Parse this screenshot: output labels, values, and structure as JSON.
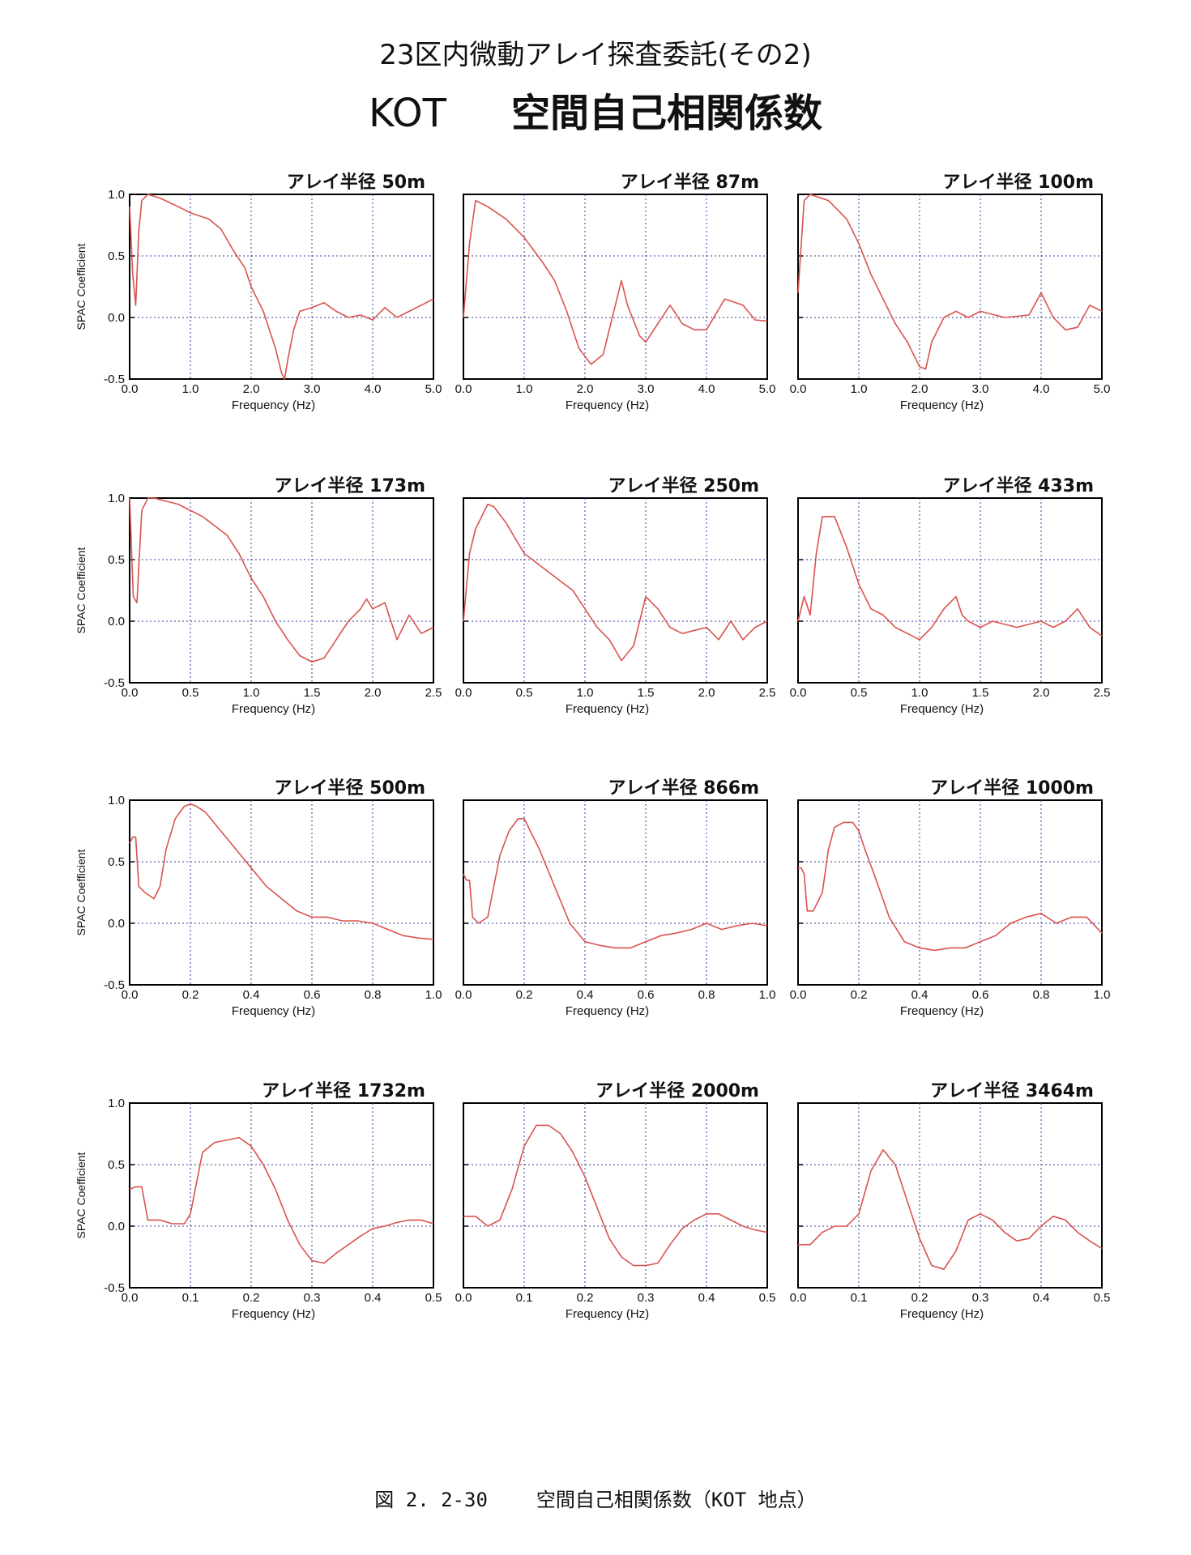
{
  "page": {
    "header_line1": "23区内微動アレイ探査委託(その2)",
    "header_code": "KOT",
    "header_title": "空間自己相関係数",
    "caption_number": "図 2. 2-30",
    "caption_text": "空間自己相関係数（KOT 地点）"
  },
  "colors": {
    "curve": "#d9534f",
    "axis": "#000000",
    "grid": "#3a3aa0"
  },
  "chart_data": [
    {
      "type": "line",
      "title": "アレイ半径 50m",
      "ylabel": "SPAC Coefficient",
      "xlabel": "Frequency (Hz)",
      "xlim": [
        0,
        5.0
      ],
      "ylim": [
        -0.5,
        1.0
      ],
      "grid": true,
      "xticks": [
        "0.0",
        "1.0",
        "2.0",
        "3.0",
        "4.0",
        "5.0"
      ],
      "yticks": [
        "-0.5",
        "0.0",
        "0.5",
        "1.0"
      ],
      "series": [
        {
          "x": [
            0,
            0.05,
            0.1,
            0.15,
            0.2,
            0.3,
            0.5,
            0.8,
            1.0,
            1.3,
            1.5,
            1.7,
            1.9,
            2.0,
            2.1,
            2.2,
            2.3,
            2.4,
            2.5,
            2.55,
            2.6,
            2.7,
            2.8,
            3.0,
            3.2,
            3.4,
            3.6,
            3.8,
            4.0,
            4.2,
            4.4,
            4.6,
            4.8,
            5.0
          ],
          "y": [
            0.9,
            0.35,
            0.1,
            0.7,
            0.95,
            1.0,
            0.97,
            0.9,
            0.85,
            0.8,
            0.72,
            0.55,
            0.4,
            0.25,
            0.15,
            0.05,
            -0.1,
            -0.25,
            -0.45,
            -0.5,
            -0.35,
            -0.1,
            0.05,
            0.08,
            0.12,
            0.05,
            0.0,
            0.02,
            -0.02,
            0.08,
            0.0,
            0.05,
            0.1,
            0.15
          ]
        }
      ]
    },
    {
      "type": "line",
      "title": "アレイ半径 87m",
      "ylabel": "",
      "xlabel": "Frequency (Hz)",
      "xlim": [
        0,
        5.0
      ],
      "ylim": [
        -0.5,
        1.0
      ],
      "grid": true,
      "xticks": [
        "0.0",
        "1.0",
        "2.0",
        "3.0",
        "4.0",
        "5.0"
      ],
      "yticks": [],
      "series": [
        {
          "x": [
            0,
            0.1,
            0.2,
            0.4,
            0.7,
            1.0,
            1.3,
            1.5,
            1.7,
            1.9,
            2.1,
            2.3,
            2.5,
            2.6,
            2.7,
            2.9,
            3.0,
            3.2,
            3.4,
            3.6,
            3.8,
            4.0,
            4.3,
            4.6,
            4.8,
            5.0
          ],
          "y": [
            0.0,
            0.6,
            0.95,
            0.9,
            0.8,
            0.65,
            0.45,
            0.3,
            0.05,
            -0.25,
            -0.38,
            -0.3,
            0.1,
            0.3,
            0.1,
            -0.15,
            -0.2,
            -0.05,
            0.1,
            -0.05,
            -0.1,
            -0.1,
            0.15,
            0.1,
            -0.02,
            -0.03
          ]
        }
      ]
    },
    {
      "type": "line",
      "title": "アレイ半径 100m",
      "ylabel": "",
      "xlabel": "Frequency (Hz)",
      "xlim": [
        0,
        5.0
      ],
      "ylim": [
        -0.5,
        1.0
      ],
      "grid": true,
      "xticks": [
        "0.0",
        "1.0",
        "2.0",
        "3.0",
        "4.0",
        "5.0"
      ],
      "yticks": [],
      "series": [
        {
          "x": [
            0,
            0.1,
            0.2,
            0.5,
            0.8,
            1.0,
            1.2,
            1.4,
            1.6,
            1.8,
            2.0,
            2.1,
            2.2,
            2.4,
            2.6,
            2.8,
            3.0,
            3.4,
            3.8,
            4.0,
            4.2,
            4.4,
            4.6,
            4.8,
            5.0
          ],
          "y": [
            0.2,
            0.95,
            1.0,
            0.95,
            0.8,
            0.6,
            0.35,
            0.15,
            -0.05,
            -0.2,
            -0.4,
            -0.42,
            -0.2,
            0.0,
            0.05,
            0.0,
            0.05,
            0.0,
            0.02,
            0.2,
            0.0,
            -0.1,
            -0.08,
            0.1,
            0.05
          ]
        }
      ]
    },
    {
      "type": "line",
      "title": "アレイ半径 173m",
      "ylabel": "SPAC Coefficient",
      "xlabel": "Frequency (Hz)",
      "xlim": [
        0,
        2.5
      ],
      "ylim": [
        -0.5,
        1.0
      ],
      "grid": true,
      "xticks": [
        "0.0",
        "0.5",
        "1.0",
        "1.5",
        "2.0",
        "2.5"
      ],
      "yticks": [
        "-0.5",
        "0.0",
        "0.5",
        "1.0"
      ],
      "series": [
        {
          "x": [
            0,
            0.03,
            0.06,
            0.1,
            0.15,
            0.2,
            0.4,
            0.6,
            0.8,
            0.9,
            1.0,
            1.1,
            1.2,
            1.3,
            1.4,
            1.5,
            1.6,
            1.7,
            1.8,
            1.9,
            1.95,
            2.0,
            2.1,
            2.2,
            2.3,
            2.4,
            2.5
          ],
          "y": [
            1.0,
            0.2,
            0.15,
            0.9,
            1.0,
            1.0,
            0.95,
            0.85,
            0.7,
            0.55,
            0.35,
            0.2,
            0.0,
            -0.15,
            -0.28,
            -0.33,
            -0.3,
            -0.15,
            0.0,
            0.1,
            0.18,
            0.1,
            0.15,
            -0.15,
            0.05,
            -0.1,
            -0.05
          ]
        }
      ]
    },
    {
      "type": "line",
      "title": "アレイ半径 250m",
      "ylabel": "",
      "xlabel": "Frequency (Hz)",
      "xlim": [
        0,
        2.5
      ],
      "ylim": [
        -0.5,
        1.0
      ],
      "grid": true,
      "xticks": [
        "0.0",
        "0.5",
        "1.0",
        "1.5",
        "2.0",
        "2.5"
      ],
      "yticks": [],
      "series": [
        {
          "x": [
            0,
            0.05,
            0.1,
            0.2,
            0.25,
            0.35,
            0.5,
            0.7,
            0.9,
            1.0,
            1.1,
            1.2,
            1.3,
            1.4,
            1.5,
            1.6,
            1.7,
            1.8,
            2.0,
            2.1,
            2.2,
            2.3,
            2.4,
            2.5
          ],
          "y": [
            0.0,
            0.55,
            0.75,
            0.95,
            0.93,
            0.8,
            0.55,
            0.4,
            0.25,
            0.1,
            -0.05,
            -0.15,
            -0.32,
            -0.2,
            0.2,
            0.1,
            -0.05,
            -0.1,
            -0.05,
            -0.15,
            0.0,
            -0.15,
            -0.05,
            0.0
          ]
        }
      ]
    },
    {
      "type": "line",
      "title": "アレイ半径 433m",
      "ylabel": "",
      "xlabel": "Frequency (Hz)",
      "xlim": [
        0,
        2.5
      ],
      "ylim": [
        -0.5,
        1.0
      ],
      "grid": true,
      "xticks": [
        "0.0",
        "0.5",
        "1.0",
        "1.5",
        "2.0",
        "2.5"
      ],
      "yticks": [],
      "series": [
        {
          "x": [
            0,
            0.05,
            0.1,
            0.15,
            0.2,
            0.3,
            0.4,
            0.5,
            0.6,
            0.7,
            0.8,
            0.9,
            1.0,
            1.1,
            1.2,
            1.3,
            1.35,
            1.4,
            1.5,
            1.6,
            1.8,
            2.0,
            2.1,
            2.2,
            2.3,
            2.4,
            2.5
          ],
          "y": [
            0.0,
            0.2,
            0.05,
            0.55,
            0.85,
            0.85,
            0.6,
            0.3,
            0.1,
            0.05,
            -0.05,
            -0.1,
            -0.15,
            -0.05,
            0.1,
            0.2,
            0.05,
            0.0,
            -0.05,
            0.0,
            -0.05,
            0.0,
            -0.05,
            0.0,
            0.1,
            -0.05,
            -0.12
          ]
        }
      ]
    },
    {
      "type": "line",
      "title": "アレイ半径 500m",
      "ylabel": "SPAC Coefficient",
      "xlabel": "Frequency (Hz)",
      "xlim": [
        0,
        1.0
      ],
      "ylim": [
        -0.5,
        1.0
      ],
      "grid": true,
      "xticks": [
        "0.0",
        "0.2",
        "0.4",
        "0.6",
        "0.8",
        "1.0"
      ],
      "yticks": [
        "-0.5",
        "0.0",
        "0.5",
        "1.0"
      ],
      "series": [
        {
          "x": [
            0,
            0.01,
            0.02,
            0.03,
            0.05,
            0.08,
            0.1,
            0.12,
            0.15,
            0.18,
            0.2,
            0.22,
            0.25,
            0.3,
            0.35,
            0.4,
            0.45,
            0.5,
            0.55,
            0.6,
            0.65,
            0.7,
            0.75,
            0.8,
            0.85,
            0.9,
            0.95,
            1.0
          ],
          "y": [
            0.65,
            0.7,
            0.7,
            0.3,
            0.25,
            0.2,
            0.3,
            0.6,
            0.85,
            0.95,
            0.97,
            0.95,
            0.9,
            0.75,
            0.6,
            0.45,
            0.3,
            0.2,
            0.1,
            0.05,
            0.05,
            0.02,
            0.02,
            0.0,
            -0.05,
            -0.1,
            -0.12,
            -0.13
          ]
        }
      ]
    },
    {
      "type": "line",
      "title": "アレイ半径 866m",
      "ylabel": "",
      "xlabel": "Frequency (Hz)",
      "xlim": [
        0,
        1.0
      ],
      "ylim": [
        -0.5,
        1.0
      ],
      "grid": true,
      "xticks": [
        "0.0",
        "0.2",
        "0.4",
        "0.6",
        "0.8",
        "1.0"
      ],
      "yticks": [],
      "series": [
        {
          "x": [
            0,
            0.01,
            0.02,
            0.03,
            0.05,
            0.08,
            0.1,
            0.12,
            0.15,
            0.18,
            0.2,
            0.22,
            0.25,
            0.3,
            0.35,
            0.4,
            0.45,
            0.5,
            0.55,
            0.6,
            0.65,
            0.7,
            0.75,
            0.8,
            0.85,
            0.9,
            0.95,
            1.0
          ],
          "y": [
            0.4,
            0.35,
            0.35,
            0.05,
            0.0,
            0.05,
            0.3,
            0.55,
            0.75,
            0.85,
            0.85,
            0.75,
            0.6,
            0.3,
            0.0,
            -0.15,
            -0.18,
            -0.2,
            -0.2,
            -0.15,
            -0.1,
            -0.08,
            -0.05,
            0.0,
            -0.05,
            -0.02,
            0.0,
            -0.02
          ]
        }
      ]
    },
    {
      "type": "line",
      "title": "アレイ半径 1000m",
      "ylabel": "",
      "xlabel": "Frequency (Hz)",
      "xlim": [
        0,
        1.0
      ],
      "ylim": [
        -0.5,
        1.0
      ],
      "grid": true,
      "xticks": [
        "0.0",
        "0.2",
        "0.4",
        "0.6",
        "0.8",
        "1.0"
      ],
      "yticks": [],
      "series": [
        {
          "x": [
            0,
            0.01,
            0.02,
            0.03,
            0.05,
            0.08,
            0.1,
            0.12,
            0.15,
            0.18,
            0.2,
            0.22,
            0.25,
            0.3,
            0.35,
            0.4,
            0.45,
            0.5,
            0.55,
            0.6,
            0.65,
            0.7,
            0.75,
            0.8,
            0.85,
            0.9,
            0.95,
            1.0
          ],
          "y": [
            0.45,
            0.45,
            0.4,
            0.1,
            0.1,
            0.25,
            0.6,
            0.78,
            0.82,
            0.82,
            0.75,
            0.6,
            0.4,
            0.05,
            -0.15,
            -0.2,
            -0.22,
            -0.2,
            -0.2,
            -0.15,
            -0.1,
            0.0,
            0.05,
            0.08,
            0.0,
            0.05,
            0.05,
            -0.08
          ]
        }
      ]
    },
    {
      "type": "line",
      "title": "アレイ半径 1732m",
      "ylabel": "SPAC Coefficient",
      "xlabel": "Frequency (Hz)",
      "xlim": [
        0,
        0.5
      ],
      "ylim": [
        -0.5,
        1.0
      ],
      "grid": true,
      "xticks": [
        "0.0",
        "0.1",
        "0.2",
        "0.3",
        "0.4",
        "0.5"
      ],
      "yticks": [
        "-0.5",
        "0.0",
        "0.5",
        "1.0"
      ],
      "series": [
        {
          "x": [
            0,
            0.01,
            0.02,
            0.03,
            0.05,
            0.07,
            0.09,
            0.1,
            0.11,
            0.12,
            0.14,
            0.16,
            0.18,
            0.2,
            0.22,
            0.24,
            0.26,
            0.28,
            0.3,
            0.32,
            0.34,
            0.36,
            0.38,
            0.4,
            0.42,
            0.44,
            0.46,
            0.48,
            0.5
          ],
          "y": [
            0.3,
            0.32,
            0.32,
            0.05,
            0.05,
            0.02,
            0.02,
            0.1,
            0.35,
            0.6,
            0.68,
            0.7,
            0.72,
            0.65,
            0.5,
            0.3,
            0.05,
            -0.15,
            -0.28,
            -0.3,
            -0.22,
            -0.15,
            -0.08,
            -0.02,
            0.0,
            0.03,
            0.05,
            0.05,
            0.02
          ]
        }
      ]
    },
    {
      "type": "line",
      "title": "アレイ半径 2000m",
      "ylabel": "",
      "xlabel": "Frequency (Hz)",
      "xlim": [
        0,
        0.5
      ],
      "ylim": [
        -0.5,
        1.0
      ],
      "grid": true,
      "xticks": [
        "0.0",
        "0.1",
        "0.2",
        "0.3",
        "0.4",
        "0.5"
      ],
      "yticks": [],
      "series": [
        {
          "x": [
            0,
            0.02,
            0.04,
            0.06,
            0.08,
            0.1,
            0.12,
            0.14,
            0.16,
            0.18,
            0.2,
            0.22,
            0.24,
            0.26,
            0.28,
            0.3,
            0.32,
            0.34,
            0.36,
            0.38,
            0.4,
            0.42,
            0.44,
            0.46,
            0.48,
            0.5
          ],
          "y": [
            0.08,
            0.08,
            0.0,
            0.05,
            0.3,
            0.65,
            0.82,
            0.82,
            0.75,
            0.6,
            0.4,
            0.15,
            -0.1,
            -0.25,
            -0.32,
            -0.32,
            -0.3,
            -0.15,
            -0.02,
            0.05,
            0.1,
            0.1,
            0.05,
            0.0,
            -0.03,
            -0.05
          ]
        }
      ]
    },
    {
      "type": "line",
      "title": "アレイ半径 3464m",
      "ylabel": "",
      "xlabel": "Frequency (Hz)",
      "xlim": [
        0,
        0.5
      ],
      "ylim": [
        -0.5,
        1.0
      ],
      "grid": true,
      "xticks": [
        "0.0",
        "0.1",
        "0.2",
        "0.3",
        "0.4",
        "0.5"
      ],
      "yticks": [],
      "series": [
        {
          "x": [
            0,
            0.02,
            0.04,
            0.06,
            0.08,
            0.1,
            0.12,
            0.14,
            0.16,
            0.18,
            0.2,
            0.22,
            0.24,
            0.26,
            0.28,
            0.3,
            0.32,
            0.34,
            0.36,
            0.38,
            0.4,
            0.42,
            0.44,
            0.46,
            0.48,
            0.5
          ],
          "y": [
            -0.15,
            -0.15,
            -0.05,
            0.0,
            0.0,
            0.1,
            0.45,
            0.62,
            0.5,
            0.2,
            -0.1,
            -0.32,
            -0.35,
            -0.2,
            0.05,
            0.1,
            0.05,
            -0.05,
            -0.12,
            -0.1,
            0.0,
            0.08,
            0.05,
            -0.05,
            -0.12,
            -0.18
          ]
        }
      ]
    }
  ]
}
